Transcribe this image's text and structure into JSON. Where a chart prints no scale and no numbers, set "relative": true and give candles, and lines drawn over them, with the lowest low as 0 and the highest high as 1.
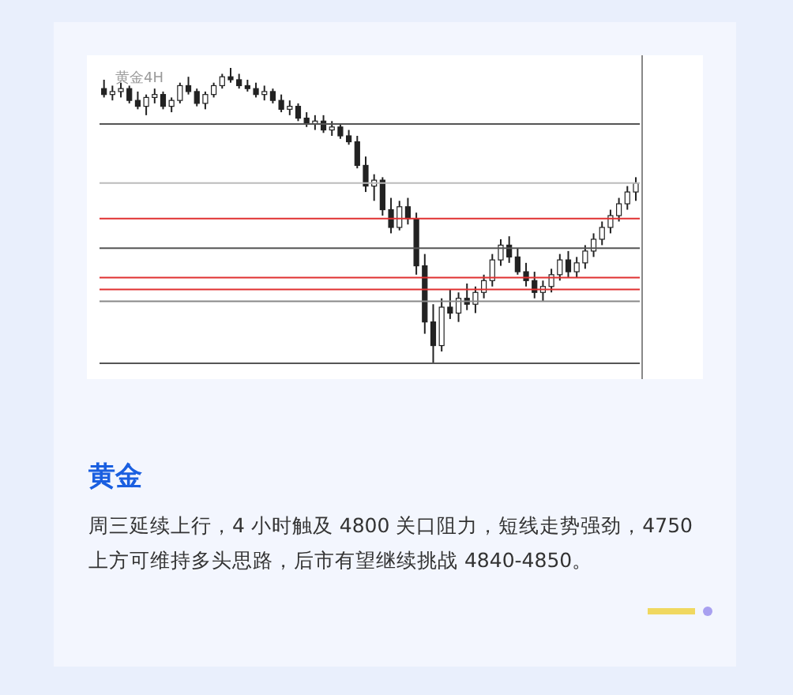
{
  "chart_data": {
    "type": "candlestick",
    "title": "黄金",
    "subtitle": "周三延续上行，4 小时触及 4800 关口阻力，短线走势强劲，4750 上方可维持多头思路，后市有望继续挑战 4840-4850。",
    "annotations": [
      "黄金4H"
    ],
    "relative": true,
    "grid": false,
    "categories": [
      null,
      null,
      null,
      null,
      null,
      null,
      null,
      null,
      null,
      null,
      null,
      null,
      null,
      null,
      null,
      null,
      null,
      null,
      null,
      null,
      null,
      null,
      null,
      null,
      null,
      null,
      null,
      null,
      null,
      null,
      null,
      null,
      null,
      null,
      null,
      null,
      null,
      null,
      null,
      null,
      null,
      null,
      null,
      null,
      null,
      null,
      null,
      null,
      null,
      null,
      null,
      null,
      null,
      null,
      null,
      null,
      null,
      null,
      null,
      null,
      null,
      null,
      null,
      null
    ],
    "ohlc": [
      [
        0.93,
        0.96,
        0.9,
        0.91
      ],
      [
        0.91,
        0.94,
        0.89,
        0.92
      ],
      [
        0.92,
        0.95,
        0.9,
        0.93
      ],
      [
        0.93,
        0.94,
        0.88,
        0.89
      ],
      [
        0.89,
        0.92,
        0.86,
        0.87
      ],
      [
        0.87,
        0.91,
        0.84,
        0.9
      ],
      [
        0.9,
        0.93,
        0.88,
        0.91
      ],
      [
        0.91,
        0.92,
        0.86,
        0.87
      ],
      [
        0.87,
        0.9,
        0.85,
        0.89
      ],
      [
        0.89,
        0.95,
        0.88,
        0.94
      ],
      [
        0.94,
        0.97,
        0.91,
        0.92
      ],
      [
        0.92,
        0.93,
        0.87,
        0.88
      ],
      [
        0.88,
        0.92,
        0.86,
        0.91
      ],
      [
        0.91,
        0.95,
        0.9,
        0.94
      ],
      [
        0.94,
        0.98,
        0.93,
        0.97
      ],
      [
        0.97,
        1.0,
        0.95,
        0.96
      ],
      [
        0.96,
        0.98,
        0.93,
        0.94
      ],
      [
        0.94,
        0.96,
        0.92,
        0.93
      ],
      [
        0.93,
        0.95,
        0.9,
        0.91
      ],
      [
        0.91,
        0.94,
        0.89,
        0.92
      ],
      [
        0.92,
        0.93,
        0.88,
        0.89
      ],
      [
        0.89,
        0.91,
        0.85,
        0.86
      ],
      [
        0.86,
        0.89,
        0.84,
        0.87
      ],
      [
        0.87,
        0.88,
        0.82,
        0.83
      ],
      [
        0.83,
        0.85,
        0.8,
        0.81
      ],
      [
        0.81,
        0.84,
        0.79,
        0.82
      ],
      [
        0.82,
        0.84,
        0.78,
        0.79
      ],
      [
        0.79,
        0.82,
        0.77,
        0.8
      ],
      [
        0.8,
        0.81,
        0.76,
        0.77
      ],
      [
        0.77,
        0.79,
        0.74,
        0.75
      ],
      [
        0.75,
        0.77,
        0.66,
        0.67
      ],
      [
        0.67,
        0.7,
        0.58,
        0.6
      ],
      [
        0.6,
        0.64,
        0.55,
        0.62
      ],
      [
        0.62,
        0.63,
        0.5,
        0.52
      ],
      [
        0.52,
        0.56,
        0.44,
        0.46
      ],
      [
        0.46,
        0.55,
        0.45,
        0.53
      ],
      [
        0.53,
        0.56,
        0.47,
        0.49
      ],
      [
        0.49,
        0.51,
        0.3,
        0.33
      ],
      [
        0.33,
        0.37,
        0.1,
        0.14
      ],
      [
        0.14,
        0.2,
        0.0,
        0.06
      ],
      [
        0.06,
        0.22,
        0.04,
        0.19
      ],
      [
        0.19,
        0.25,
        0.15,
        0.17
      ],
      [
        0.17,
        0.24,
        0.14,
        0.22
      ],
      [
        0.22,
        0.27,
        0.18,
        0.2
      ],
      [
        0.2,
        0.26,
        0.17,
        0.24
      ],
      [
        0.24,
        0.3,
        0.22,
        0.28
      ],
      [
        0.28,
        0.37,
        0.26,
        0.35
      ],
      [
        0.35,
        0.42,
        0.33,
        0.4
      ],
      [
        0.4,
        0.43,
        0.34,
        0.36
      ],
      [
        0.36,
        0.39,
        0.3,
        0.31
      ],
      [
        0.31,
        0.34,
        0.26,
        0.28
      ],
      [
        0.28,
        0.31,
        0.22,
        0.24
      ],
      [
        0.24,
        0.28,
        0.21,
        0.26
      ],
      [
        0.26,
        0.32,
        0.24,
        0.3
      ],
      [
        0.3,
        0.37,
        0.28,
        0.35
      ],
      [
        0.35,
        0.38,
        0.29,
        0.31
      ],
      [
        0.31,
        0.36,
        0.29,
        0.34
      ],
      [
        0.34,
        0.4,
        0.32,
        0.38
      ],
      [
        0.38,
        0.44,
        0.36,
        0.42
      ],
      [
        0.42,
        0.48,
        0.4,
        0.46
      ],
      [
        0.46,
        0.52,
        0.44,
        0.5
      ],
      [
        0.5,
        0.56,
        0.48,
        0.54
      ],
      [
        0.54,
        0.6,
        0.52,
        0.58
      ],
      [
        0.58,
        0.63,
        0.55,
        0.61
      ]
    ],
    "ref_lines": [
      {
        "axis": "y",
        "value": 0.81,
        "color": "#555555"
      },
      {
        "axis": "y",
        "value": 0.61,
        "color": "#bbbbbb"
      },
      {
        "axis": "y",
        "value": 0.49,
        "color": "#e03030"
      },
      {
        "axis": "y",
        "value": 0.39,
        "color": "#555555"
      },
      {
        "axis": "y",
        "value": 0.29,
        "color": "#e03030"
      },
      {
        "axis": "y",
        "value": 0.25,
        "color": "#e03030"
      },
      {
        "axis": "y",
        "value": 0.21,
        "color": "#888888"
      },
      {
        "axis": "y",
        "value": 0,
        "color": "#555555"
      }
    ]
  }
}
